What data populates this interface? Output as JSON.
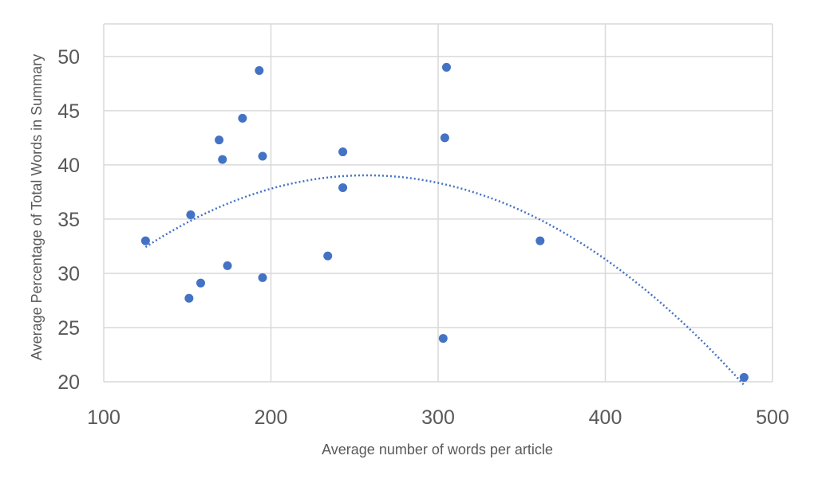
{
  "chart_data": {
    "type": "scatter",
    "title": "",
    "xlabel": "Average number of words per article",
    "ylabel": "Average Percentage of Total Words in Summary",
    "xlim": [
      100,
      500
    ],
    "ylim": [
      20,
      53
    ],
    "xticks": [
      100,
      200,
      300,
      400,
      500
    ],
    "yticks": [
      20,
      25,
      30,
      35,
      40,
      45,
      50
    ],
    "grid": true,
    "legend": "none",
    "colors": {
      "point": "#4472c4",
      "trendline": "#4472c4",
      "grid": "#d9d9d9"
    },
    "trendline": {
      "type": "polynomial",
      "order": 2,
      "style": "dotted",
      "x_range": [
        125,
        483
      ]
    },
    "points": [
      {
        "x": 125,
        "y": 33.0
      },
      {
        "x": 151,
        "y": 27.7
      },
      {
        "x": 152,
        "y": 35.4
      },
      {
        "x": 158,
        "y": 29.1
      },
      {
        "x": 169,
        "y": 42.3
      },
      {
        "x": 171,
        "y": 40.5
      },
      {
        "x": 174,
        "y": 30.7
      },
      {
        "x": 183,
        "y": 44.3
      },
      {
        "x": 193,
        "y": 48.7
      },
      {
        "x": 195,
        "y": 40.8
      },
      {
        "x": 195,
        "y": 29.6
      },
      {
        "x": 234,
        "y": 31.6
      },
      {
        "x": 243,
        "y": 41.2
      },
      {
        "x": 243,
        "y": 37.9
      },
      {
        "x": 303,
        "y": 24.0
      },
      {
        "x": 304,
        "y": 42.5
      },
      {
        "x": 305,
        "y": 49.0
      },
      {
        "x": 361,
        "y": 33.0
      },
      {
        "x": 483,
        "y": 20.4
      }
    ]
  }
}
